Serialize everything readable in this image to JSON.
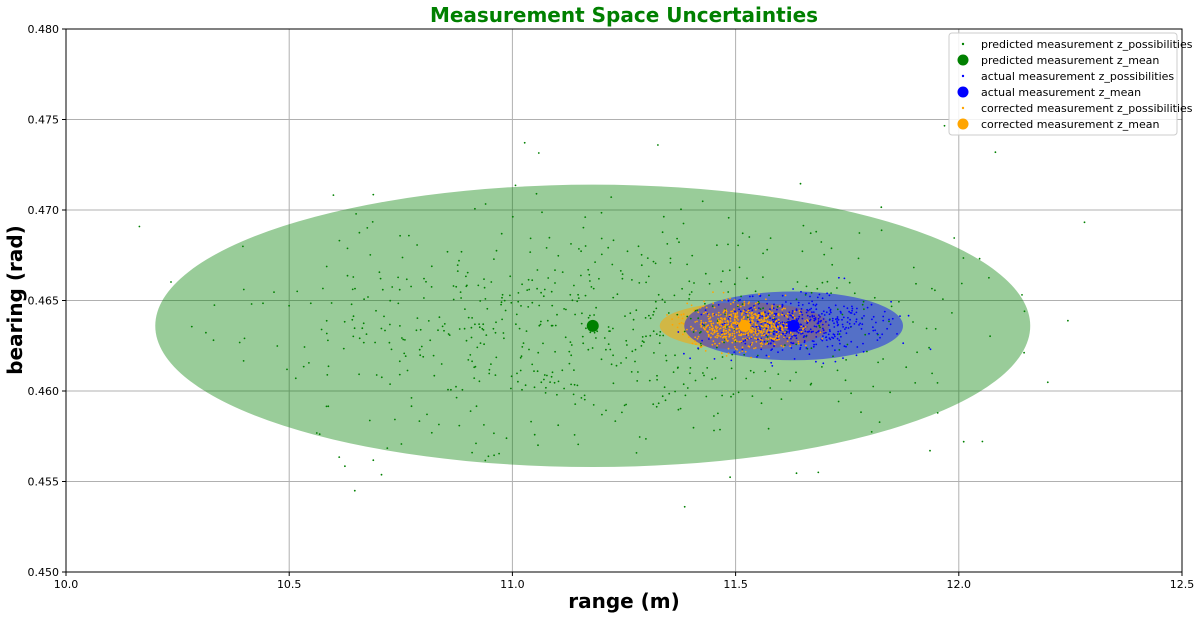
{
  "chart_data": {
    "type": "scatter",
    "title": "Measurement Space Uncertainties",
    "title_color": "#008000",
    "xlabel": "range (m)",
    "ylabel": "bearing (rad)",
    "xlim": [
      10.0,
      12.5
    ],
    "ylim": [
      0.45,
      0.48
    ],
    "xticks": [
      "10.0",
      "10.5",
      "11.0",
      "11.5",
      "12.0",
      "12.5"
    ],
    "yticks": [
      "0.450",
      "0.455",
      "0.460",
      "0.465",
      "0.470",
      "0.475",
      "0.480"
    ],
    "grid": true,
    "legend_position": "top-right",
    "ellipses": [
      {
        "series": "predicted",
        "cx": 11.18,
        "cy": 0.4636,
        "rx": 0.98,
        "ry": 0.0078,
        "color": "#008000",
        "opacity": 0.4
      },
      {
        "series": "corrected",
        "cx": 11.52,
        "cy": 0.4636,
        "rx": 0.19,
        "ry": 0.0013,
        "color": "#ffa500",
        "opacity": 0.55
      },
      {
        "series": "actual",
        "cx": 11.63,
        "cy": 0.4636,
        "rx": 0.245,
        "ry": 0.0019,
        "color": "#0000ff",
        "opacity": 0.45
      }
    ],
    "clouds": [
      {
        "series": "predicted",
        "color": "#008000",
        "count": 700,
        "center": [
          11.18,
          0.4636
        ],
        "std": [
          0.38,
          0.0032
        ],
        "seed": 11
      },
      {
        "series": "actual",
        "color": "#0000ff",
        "count": 450,
        "center": [
          11.63,
          0.4636
        ],
        "std": [
          0.09,
          0.0008
        ],
        "seed": 23
      },
      {
        "series": "corrected",
        "color": "#ffa500",
        "count": 600,
        "center": [
          11.52,
          0.4636
        ],
        "std": [
          0.06,
          0.0006
        ],
        "seed": 37
      }
    ],
    "means": [
      {
        "series": "predicted",
        "x": 11.18,
        "y": 0.4636,
        "color": "#008000"
      },
      {
        "series": "actual",
        "x": 11.63,
        "y": 0.4636,
        "color": "#0000ff"
      },
      {
        "series": "corrected",
        "x": 11.52,
        "y": 0.4636,
        "color": "#ffa500"
      }
    ],
    "legend": [
      {
        "label": "predicted measurement z_possibilities",
        "color": "#008000",
        "marker": "small"
      },
      {
        "label": "predicted measurement z_mean",
        "color": "#008000",
        "marker": "large"
      },
      {
        "label": "actual measurement z_possibilities",
        "color": "#0000ff",
        "marker": "small"
      },
      {
        "label": "actual measurement z_mean",
        "color": "#0000ff",
        "marker": "large"
      },
      {
        "label": "corrected measurement z_possibilities",
        "color": "#ffa500",
        "marker": "small"
      },
      {
        "label": "corrected measurement z_mean",
        "color": "#ffa500",
        "marker": "large"
      }
    ]
  }
}
